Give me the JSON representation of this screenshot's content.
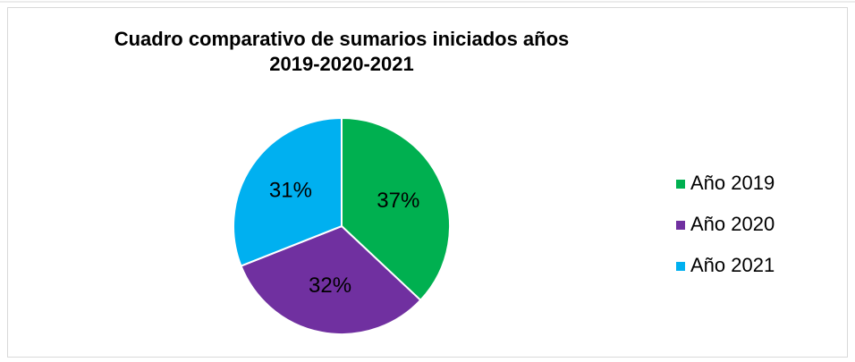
{
  "chart_data": {
    "type": "pie",
    "title": "Cuadro comparativo de sumarios iniciados años 2019-2020-2021",
    "categories": [
      "Año 2019",
      "Año 2020",
      "Año 2021"
    ],
    "values": [
      37,
      32,
      31
    ],
    "value_labels": [
      "37%",
      "32%",
      "31%"
    ],
    "colors": [
      "#00b050",
      "#7030a0",
      "#00b0f0"
    ],
    "legend": "right"
  }
}
